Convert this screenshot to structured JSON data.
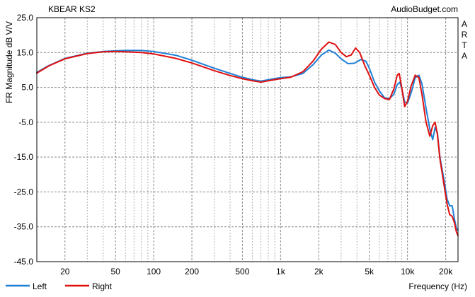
{
  "chart_data": {
    "type": "line",
    "title": "KBEAR KS2",
    "source_label": "AudioBudget.com",
    "side_label": [
      "A",
      "R",
      "T",
      "A"
    ],
    "xlabel": "Frequency (Hz)",
    "ylabel": "FR Magnitude dB V/V",
    "x_scale": "log",
    "xlim": [
      12,
      25000
    ],
    "ylim": [
      -45,
      25
    ],
    "grid": true,
    "legend_position": "bottom-left",
    "x_ticks": [
      {
        "value": 20,
        "label": "20"
      },
      {
        "value": 50,
        "label": "50"
      },
      {
        "value": 100,
        "label": "100"
      },
      {
        "value": 200,
        "label": "200"
      },
      {
        "value": 500,
        "label": "500"
      },
      {
        "value": 1000,
        "label": "1k"
      },
      {
        "value": 2000,
        "label": "2k"
      },
      {
        "value": 5000,
        "label": "5k"
      },
      {
        "value": 10000,
        "label": "10k"
      },
      {
        "value": 20000,
        "label": "20k"
      }
    ],
    "y_ticks": [
      {
        "value": 25,
        "label": "25.0"
      },
      {
        "value": 15,
        "label": "15.0"
      },
      {
        "value": 5,
        "label": "5.0"
      },
      {
        "value": -5,
        "label": "-5.0"
      },
      {
        "value": -15,
        "label": "-15.0"
      },
      {
        "value": -25,
        "label": "-25.0"
      },
      {
        "value": -35,
        "label": "-35.0"
      },
      {
        "value": -45,
        "label": "-45.0"
      }
    ],
    "series": [
      {
        "name": "Left",
        "color": "#1e7fd6",
        "points": [
          [
            12,
            9.3
          ],
          [
            15,
            11.3
          ],
          [
            20,
            13.3
          ],
          [
            30,
            14.8
          ],
          [
            40,
            15.3
          ],
          [
            50,
            15.5
          ],
          [
            60,
            15.6
          ],
          [
            80,
            15.6
          ],
          [
            100,
            15.3
          ],
          [
            150,
            14.2
          ],
          [
            200,
            12.8
          ],
          [
            300,
            10.5
          ],
          [
            400,
            9.0
          ],
          [
            500,
            7.9
          ],
          [
            600,
            7.2
          ],
          [
            700,
            6.8
          ],
          [
            800,
            7.2
          ],
          [
            1000,
            7.8
          ],
          [
            1200,
            8.0
          ],
          [
            1500,
            9.0
          ],
          [
            1800,
            11.5
          ],
          [
            2100,
            14.3
          ],
          [
            2400,
            15.7
          ],
          [
            2700,
            14.8
          ],
          [
            3000,
            13.2
          ],
          [
            3400,
            11.8
          ],
          [
            3800,
            11.9
          ],
          [
            4300,
            13.0
          ],
          [
            4700,
            12.5
          ],
          [
            5000,
            10.5
          ],
          [
            5500,
            6.5
          ],
          [
            6000,
            4.0
          ],
          [
            6600,
            2.0
          ],
          [
            7200,
            1.8
          ],
          [
            7800,
            3.0
          ],
          [
            8300,
            5.8
          ],
          [
            8700,
            6.5
          ],
          [
            9100,
            4.0
          ],
          [
            9500,
            0.8
          ],
          [
            10000,
            0.5
          ],
          [
            10700,
            3.5
          ],
          [
            11500,
            7.8
          ],
          [
            12300,
            8.5
          ],
          [
            13000,
            6.0
          ],
          [
            14000,
            -1.0
          ],
          [
            15000,
            -7.0
          ],
          [
            15800,
            -10.0
          ],
          [
            16500,
            -6.5
          ],
          [
            17200,
            -8.0
          ],
          [
            18000,
            -15.0
          ],
          [
            19500,
            -22.0
          ],
          [
            20500,
            -27.0
          ],
          [
            21500,
            -29.0
          ],
          [
            22500,
            -29.0
          ],
          [
            23500,
            -33.0
          ],
          [
            24300,
            -35.5
          ],
          [
            25000,
            -36.0
          ]
        ]
      },
      {
        "name": "Right",
        "color": "#e01010",
        "points": [
          [
            12,
            9.1
          ],
          [
            15,
            11.2
          ],
          [
            20,
            13.2
          ],
          [
            30,
            14.7
          ],
          [
            40,
            15.2
          ],
          [
            50,
            15.3
          ],
          [
            60,
            15.2
          ],
          [
            80,
            15.0
          ],
          [
            100,
            14.6
          ],
          [
            150,
            13.3
          ],
          [
            200,
            12.0
          ],
          [
            300,
            9.8
          ],
          [
            400,
            8.4
          ],
          [
            500,
            7.5
          ],
          [
            600,
            6.9
          ],
          [
            700,
            6.5
          ],
          [
            800,
            6.9
          ],
          [
            1000,
            7.5
          ],
          [
            1200,
            7.9
          ],
          [
            1500,
            9.5
          ],
          [
            1800,
            12.5
          ],
          [
            2100,
            16.0
          ],
          [
            2400,
            18.0
          ],
          [
            2700,
            17.3
          ],
          [
            3000,
            15.0
          ],
          [
            3300,
            13.8
          ],
          [
            3600,
            14.3
          ],
          [
            3900,
            16.3
          ],
          [
            4200,
            15.0
          ],
          [
            4600,
            11.3
          ],
          [
            5000,
            8.5
          ],
          [
            5500,
            5.0
          ],
          [
            6000,
            2.8
          ],
          [
            6600,
            1.8
          ],
          [
            7200,
            1.5
          ],
          [
            7800,
            4.5
          ],
          [
            8300,
            8.5
          ],
          [
            8600,
            9.0
          ],
          [
            9000,
            5.0
          ],
          [
            9500,
            -0.5
          ],
          [
            10000,
            1.0
          ],
          [
            10700,
            5.5
          ],
          [
            11500,
            8.5
          ],
          [
            12300,
            7.8
          ],
          [
            13000,
            3.0
          ],
          [
            14000,
            -5.0
          ],
          [
            15000,
            -9.0
          ],
          [
            15800,
            -6.0
          ],
          [
            16500,
            -5.0
          ],
          [
            17200,
            -8.5
          ],
          [
            18000,
            -15.5
          ],
          [
            19500,
            -23.5
          ],
          [
            20500,
            -28.5
          ],
          [
            21500,
            -31.5
          ],
          [
            22500,
            -32.0
          ],
          [
            23500,
            -34.0
          ],
          [
            24300,
            -36.5
          ],
          [
            25000,
            -37.5
          ]
        ]
      }
    ]
  }
}
